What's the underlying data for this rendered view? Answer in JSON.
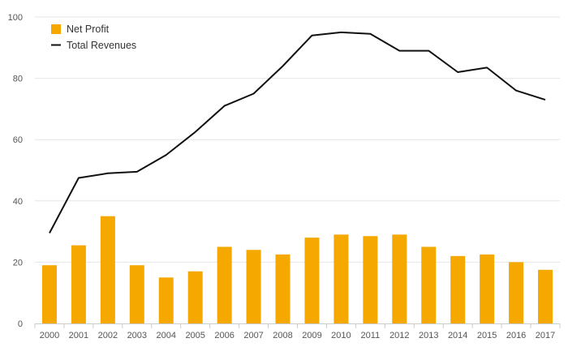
{
  "chart_data": {
    "type": "bar",
    "categories": [
      "2000",
      "2001",
      "2002",
      "2003",
      "2004",
      "2005",
      "2006",
      "2007",
      "2008",
      "2009",
      "2010",
      "2011",
      "2012",
      "2013",
      "2014",
      "2015",
      "2016",
      "2017"
    ],
    "series": [
      {
        "name": "Net Profit",
        "kind": "bar",
        "color": "#f5a800",
        "values": [
          19,
          25.5,
          35,
          19,
          15,
          17,
          25,
          24,
          22.5,
          28,
          29,
          28.5,
          29,
          25,
          22,
          22.5,
          20,
          17.5
        ]
      },
      {
        "name": "Total Revenues",
        "kind": "line",
        "color": "#111111",
        "values": [
          29.5,
          47.5,
          49,
          49.5,
          55,
          62.5,
          71,
          75,
          84,
          94,
          95,
          94.5,
          89,
          89,
          82,
          83.5,
          76,
          73
        ]
      }
    ],
    "yticks": [
      0,
      20,
      40,
      60,
      80,
      100
    ],
    "ylim": [
      0,
      100
    ],
    "grid": true,
    "legend_position": "top-left",
    "title": "",
    "xlabel": "",
    "ylabel": ""
  }
}
